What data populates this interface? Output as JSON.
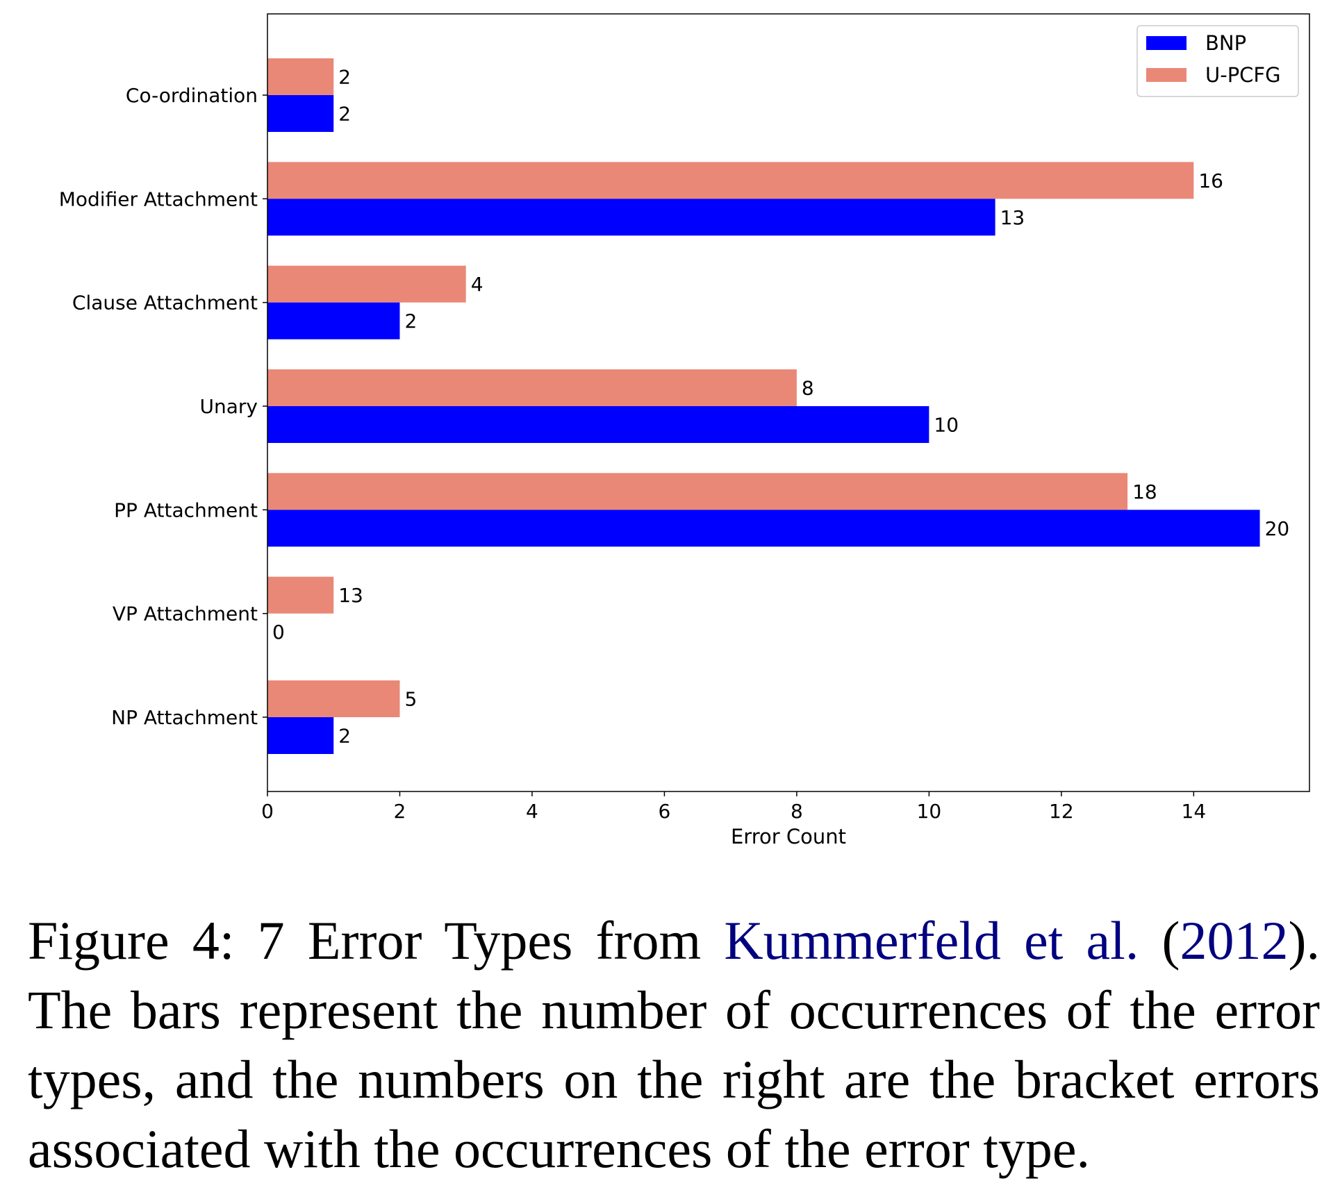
{
  "chart_data": {
    "type": "bar",
    "orientation": "horizontal",
    "categories": [
      "Co-ordination",
      "Modifier Attachment",
      "Clause Attachment",
      "Unary",
      "PP Attachment",
      "VP Attachment",
      "NP Attachment"
    ],
    "series": [
      {
        "name": "BNP",
        "color": "#0000ff",
        "values": [
          1,
          11,
          2,
          10,
          15,
          0,
          1
        ],
        "labels": [
          "2",
          "13",
          "2",
          "10",
          "20",
          "0",
          "2"
        ]
      },
      {
        "name": "U-PCFG",
        "color": "#ea8877",
        "values": [
          1,
          14,
          3,
          8,
          13,
          1,
          2
        ],
        "labels": [
          "2",
          "16",
          "4",
          "8",
          "18",
          "13",
          "5"
        ]
      }
    ],
    "xlabel": "Error Count",
    "ylabel": "",
    "xlim": [
      0,
      15.75
    ],
    "xticks": [
      "0",
      "2",
      "4",
      "6",
      "8",
      "10",
      "12",
      "14"
    ],
    "legend": "top-right",
    "grid": false
  },
  "caption": {
    "prefix": "Figure 4: 7 Error Types from ",
    "citation": "Kummerfeld et al.",
    "year_open": " (",
    "year": "2012",
    "year_close": ").",
    "rest": " The bars represent the number of occurrences of the error types, and the numbers on the right are the bracket errors associated with the occurrences of the error type."
  }
}
